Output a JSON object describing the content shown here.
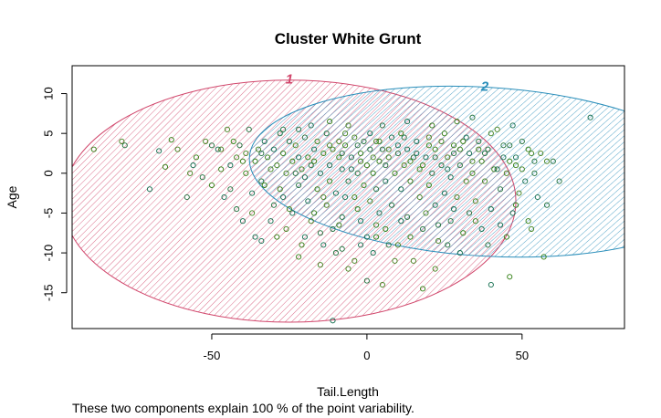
{
  "chart_data": {
    "type": "scatter",
    "title": "Cluster White Grunt",
    "xlabel": "Tail.Length",
    "ylabel": "Age",
    "xlim": [
      -95,
      83
    ],
    "ylim": [
      -19.5,
      13.5
    ],
    "xticks": [
      -50,
      0,
      50
    ],
    "yticks": [
      -15,
      -10,
      -5,
      0,
      5,
      10
    ],
    "footnote": "These two components explain 100 % of the point variability.",
    "clusters": [
      {
        "label": "1",
        "color": "#D1476C",
        "center": [
          -25,
          -3.5
        ],
        "semi_axes": [
          73,
          15.2
        ],
        "rotation_deg": 0
      },
      {
        "label": "2",
        "color": "#2A8EBA",
        "center": [
          38,
          0.2
        ],
        "semi_axes": [
          76,
          10.6
        ],
        "rotation_deg": 3.5
      }
    ],
    "point_colors": [
      "#2E7D0F",
      "#3F7F1A",
      "#1D6E3A",
      "#0E6B4B"
    ],
    "points": [
      [
        -88,
        3
      ],
      [
        -79,
        4
      ],
      [
        -78,
        3.5
      ],
      [
        -67,
        2.8
      ],
      [
        -63,
        4.2
      ],
      [
        -61,
        3
      ],
      [
        -58,
        -3
      ],
      [
        -56,
        1
      ],
      [
        -55,
        2
      ],
      [
        -52,
        4
      ],
      [
        -50,
        3.5
      ],
      [
        -48,
        3
      ],
      [
        -47,
        0.5
      ],
      [
        -47,
        3
      ],
      [
        -44,
        -2
      ],
      [
        -44,
        1
      ],
      [
        -43,
        4
      ],
      [
        -42,
        2
      ],
      [
        -41,
        3.5
      ],
      [
        -40,
        -6
      ],
      [
        -39,
        0
      ],
      [
        -39,
        2.5
      ],
      [
        -38,
        5.5
      ],
      [
        -37,
        -2.5
      ],
      [
        -36,
        1.5
      ],
      [
        -35,
        3
      ],
      [
        -34,
        -1
      ],
      [
        -33,
        4
      ],
      [
        -32,
        2
      ],
      [
        -31,
        0.5
      ],
      [
        -30,
        -4
      ],
      [
        -30,
        3
      ],
      [
        -29,
        -8
      ],
      [
        -29,
        1
      ],
      [
        -28,
        5
      ],
      [
        -27,
        -3
      ],
      [
        -27,
        2.5
      ],
      [
        -26,
        0
      ],
      [
        -25,
        4
      ],
      [
        -24,
        -5
      ],
      [
        -24,
        1.5
      ],
      [
        -23,
        3.5
      ],
      [
        -22,
        -1.5
      ],
      [
        -22,
        2
      ],
      [
        -21,
        -9
      ],
      [
        -21,
        0.5
      ],
      [
        -20,
        4.5
      ],
      [
        -19,
        -3.5
      ],
      [
        -19,
        2
      ],
      [
        -18,
        -6
      ],
      [
        -18,
        1
      ],
      [
        -17,
        3
      ],
      [
        -16,
        -2
      ],
      [
        -16,
        4
      ],
      [
        -15,
        -7.5
      ],
      [
        -15,
        0
      ],
      [
        -14,
        2.5
      ],
      [
        -13,
        -4
      ],
      [
        -13,
        5
      ],
      [
        -12,
        1
      ],
      [
        -12,
        -1
      ],
      [
        -11,
        3
      ],
      [
        -10,
        -10
      ],
      [
        -10,
        -2.5
      ],
      [
        -9,
        2
      ],
      [
        -9,
        4
      ],
      [
        -8,
        -5.5
      ],
      [
        -8,
        0.5
      ],
      [
        -7,
        3.5
      ],
      [
        -6,
        -12
      ],
      [
        -6,
        -1
      ],
      [
        -5,
        2
      ],
      [
        -4,
        -3
      ],
      [
        -4,
        4.5
      ],
      [
        -3,
        0
      ],
      [
        -2,
        -6
      ],
      [
        -2,
        2.5
      ],
      [
        -1,
        -1.5
      ],
      [
        -1,
        4
      ],
      [
        0,
        -8
      ],
      [
        0,
        1
      ],
      [
        1,
        -3.5
      ],
      [
        1,
        3
      ],
      [
        2,
        -10
      ],
      [
        2,
        0
      ],
      [
        3,
        4
      ],
      [
        3,
        -2
      ],
      [
        4,
        -5
      ],
      [
        4,
        1.5
      ],
      [
        5,
        -14
      ],
      [
        5,
        3
      ],
      [
        6,
        -1
      ],
      [
        6,
        -7
      ],
      [
        7,
        2
      ],
      [
        8,
        -4
      ],
      [
        8,
        4.5
      ],
      [
        9,
        0
      ],
      [
        10,
        -9
      ],
      [
        10,
        2.5
      ],
      [
        11,
        -2
      ],
      [
        11,
        5
      ],
      [
        12,
        1
      ],
      [
        13,
        -5.5
      ],
      [
        13,
        3
      ],
      [
        14,
        -1
      ],
      [
        15,
        -11
      ],
      [
        15,
        2
      ],
      [
        16,
        4
      ],
      [
        17,
        0.5
      ],
      [
        17,
        -3
      ],
      [
        18,
        -7
      ],
      [
        19,
        2
      ],
      [
        20,
        -1.5
      ],
      [
        20,
        4.5
      ],
      [
        21,
        0
      ],
      [
        22,
        -4
      ],
      [
        22,
        3
      ],
      [
        23,
        -8.5
      ],
      [
        24,
        1
      ],
      [
        25,
        -2.5
      ],
      [
        25,
        5
      ],
      [
        26,
        2
      ],
      [
        27,
        -6
      ],
      [
        27,
        -0.5
      ],
      [
        28,
        3.5
      ],
      [
        29,
        -3
      ],
      [
        30,
        1
      ],
      [
        30,
        -10
      ],
      [
        31,
        4
      ],
      [
        32,
        -1
      ],
      [
        33,
        -5
      ],
      [
        33,
        2.5
      ],
      [
        34,
        0
      ],
      [
        35,
        -3.5
      ],
      [
        36,
        4
      ],
      [
        37,
        -7
      ],
      [
        37,
        1.5
      ],
      [
        38,
        -1
      ],
      [
        39,
        3
      ],
      [
        40,
        -4.5
      ],
      [
        41,
        0.5
      ],
      [
        42,
        5.5
      ],
      [
        43,
        -2
      ],
      [
        44,
        2
      ],
      [
        45,
        -8
      ],
      [
        45,
        0
      ],
      [
        46,
        3.5
      ],
      [
        47,
        -5
      ],
      [
        48,
        1
      ],
      [
        49,
        -2.5
      ],
      [
        50,
        4
      ],
      [
        51,
        -1
      ],
      [
        52,
        -6
      ],
      [
        53,
        2.5
      ],
      [
        54,
        0
      ],
      [
        55,
        -3
      ],
      [
        57,
        -10.5
      ],
      [
        58,
        1.5
      ],
      [
        62,
        -1
      ],
      [
        72,
        7
      ],
      [
        -50,
        -1.5
      ],
      [
        -45,
        5.5
      ],
      [
        -42,
        -4.5
      ],
      [
        -36,
        -8
      ],
      [
        -33,
        -1.5
      ],
      [
        -26,
        -7
      ],
      [
        -22,
        5.5
      ],
      [
        -14,
        -9
      ],
      [
        -9,
        -6.5
      ],
      [
        -4,
        -11
      ],
      [
        0,
        -13.5
      ],
      [
        -11,
        -18.5
      ],
      [
        18,
        -14.5
      ],
      [
        22,
        -12
      ],
      [
        26,
        -9
      ],
      [
        40,
        -14
      ],
      [
        46,
        -13
      ],
      [
        -7,
        5
      ],
      [
        -3,
        3.5
      ],
      [
        1,
        5
      ],
      [
        4,
        4
      ],
      [
        7,
        3
      ],
      [
        12,
        4.5
      ],
      [
        16,
        2.5
      ],
      [
        20,
        3.5
      ],
      [
        24,
        4
      ],
      [
        28,
        2.5
      ],
      [
        32,
        4.5
      ],
      [
        36,
        3
      ],
      [
        40,
        5
      ],
      [
        44,
        3.5
      ],
      [
        48,
        2
      ],
      [
        52,
        3
      ],
      [
        56,
        2.5
      ],
      [
        60,
        1.5
      ],
      [
        -20,
        -0.5
      ],
      [
        -17,
        1.5
      ],
      [
        -12,
        3.5
      ],
      [
        -8,
        2.5
      ],
      [
        -5,
        0.5
      ],
      [
        -2,
        1.5
      ],
      [
        2,
        2
      ],
      [
        6,
        1
      ],
      [
        10,
        3.5
      ],
      [
        14,
        1.5
      ],
      [
        18,
        1
      ],
      [
        22,
        2
      ],
      [
        26,
        0.5
      ],
      [
        30,
        3
      ],
      [
        34,
        1.5
      ],
      [
        38,
        2.5
      ],
      [
        42,
        0.5
      ],
      [
        46,
        1.5
      ],
      [
        50,
        0.5
      ],
      [
        54,
        1.5
      ],
      [
        -70,
        -2
      ],
      [
        -65,
        0.8
      ],
      [
        -57,
        0
      ],
      [
        -53,
        -0.5
      ],
      [
        -46,
        -3
      ],
      [
        -40,
        1.5
      ],
      [
        -37,
        -5
      ],
      [
        -34,
        2.5
      ],
      [
        -31,
        -6
      ],
      [
        -28,
        -2
      ],
      [
        -25,
        -4.5
      ],
      [
        -23,
        0
      ],
      [
        -20,
        -8
      ],
      [
        -17,
        -5
      ],
      [
        -14,
        -3
      ],
      [
        -11,
        -7
      ],
      [
        -7,
        -3
      ],
      [
        -3,
        -4.5
      ],
      [
        3,
        -6.5
      ],
      [
        7,
        -9
      ],
      [
        11,
        -6
      ],
      [
        14,
        -8
      ],
      [
        19,
        -5
      ],
      [
        23,
        -6.5
      ],
      [
        28,
        -4.5
      ],
      [
        31,
        -7.5
      ],
      [
        35,
        -6
      ],
      [
        39,
        -9
      ],
      [
        43,
        -6.5
      ],
      [
        48,
        -4
      ],
      [
        53,
        -7
      ],
      [
        58,
        -4
      ],
      [
        -34,
        -8.5
      ],
      [
        -22,
        -10.5
      ],
      [
        -15,
        -11.5
      ],
      [
        -8,
        -9.5
      ],
      [
        -2,
        -9
      ],
      [
        3,
        -8
      ],
      [
        9,
        -11
      ],
      [
        -27,
        5.5
      ],
      [
        -18,
        6
      ],
      [
        -12,
        6.5
      ],
      [
        -6,
        6
      ],
      [
        5,
        6
      ],
      [
        13,
        6.5
      ],
      [
        21,
        6
      ],
      [
        29,
        6.5
      ],
      [
        34,
        7
      ],
      [
        47,
        6
      ]
    ]
  }
}
